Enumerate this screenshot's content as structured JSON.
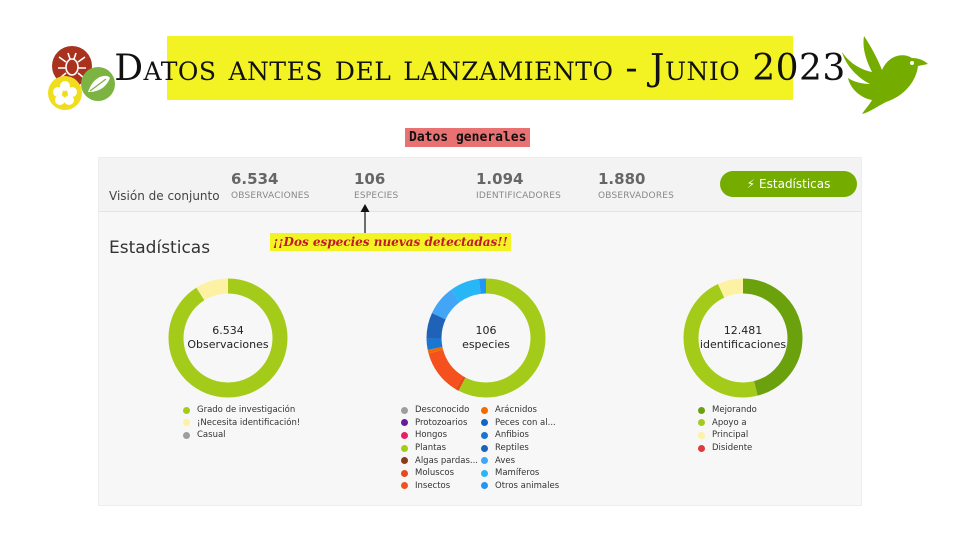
{
  "title": "Datos antes del lanzamiento - Junio 2023",
  "subtitle": "Datos generales",
  "overview": {
    "label": "Visión de conjunto",
    "stats": [
      {
        "value": "6.534",
        "label": "OBSERVACIONES"
      },
      {
        "value": "106",
        "label": "ESPECIES"
      },
      {
        "value": "1.094",
        "label": "IDENTIFICADORES"
      },
      {
        "value": "1.880",
        "label": "OBSERVADORES"
      }
    ],
    "button_label": "Estadísticas",
    "button_icon": "lightning-icon"
  },
  "section_title": "Estadísticas",
  "callout": "¡¡Dos especies nuevas detectadas!!",
  "charts": [
    {
      "center_value": "6.534",
      "center_label": "Observaciones",
      "segments": [
        {
          "label": "Grado de investigación",
          "value": 91,
          "color": "#a4cb1a"
        },
        {
          "label": "¡Necesita identificación!",
          "value": 9,
          "color": "#fdf1a4"
        },
        {
          "label": "Casual",
          "value": 0,
          "color": "#9e9e9e"
        }
      ]
    },
    {
      "center_value": "106",
      "center_label": "especies",
      "segments": [
        {
          "label": "Desconocido",
          "value": 0,
          "color": "#9e9e9e"
        },
        {
          "label": "Protozoarios",
          "value": 0,
          "color": "#6a1b9a"
        },
        {
          "label": "Hongos",
          "value": 0,
          "color": "#e91e63"
        },
        {
          "label": "Plantas",
          "value": 57,
          "color": "#a4cb1a"
        },
        {
          "label": "Algas pardas...",
          "value": 0,
          "color": "#8b3a1a"
        },
        {
          "label": "Moluscos",
          "value": 1,
          "color": "#e64a19"
        },
        {
          "label": "Insectos",
          "value": 12,
          "color": "#f4511e"
        },
        {
          "label": "Arácnidos",
          "value": 1,
          "color": "#ef6c00"
        },
        {
          "label": "Peces con al...",
          "value": 0,
          "color": "#1565c0"
        },
        {
          "label": "Anfibios",
          "value": 3,
          "color": "#1976d2"
        },
        {
          "label": "Reptiles",
          "value": 7,
          "color": "#1e63b8"
        },
        {
          "label": "Aves",
          "value": 8,
          "color": "#42a5f5"
        },
        {
          "label": "Mamíferos",
          "value": 8,
          "color": "#29b6f6"
        },
        {
          "label": "Otros animales",
          "value": 2,
          "color": "#2196f3"
        }
      ]
    },
    {
      "center_value": "12.481",
      "center_label": "identificaciones",
      "segments": [
        {
          "label": "Mejorando",
          "value": 46,
          "color": "#6aa10c"
        },
        {
          "label": "Apoyo a",
          "value": 47,
          "color": "#a4cb1a"
        },
        {
          "label": "Principal",
          "value": 7,
          "color": "#fdf1a4"
        },
        {
          "label": "Disidente",
          "value": 0,
          "color": "#e0393e"
        }
      ]
    }
  ]
}
